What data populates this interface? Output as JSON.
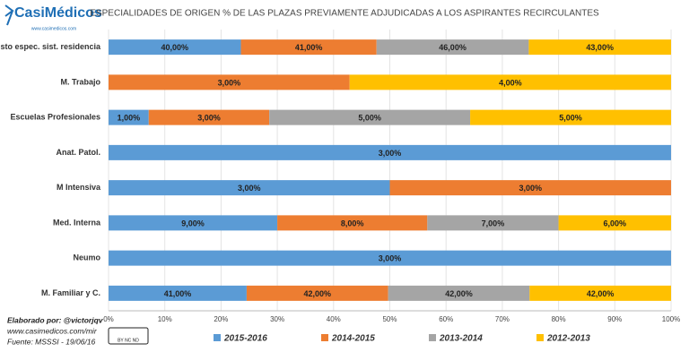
{
  "chart_data": {
    "type": "bar",
    "stacked": "percent",
    "orientation": "horizontal",
    "title": "ESPECIALIDADES DE ORIGEN % DE LAS PLAZAS PREVIAMENTE ADJUDICADAS A LOS ASPIRANTES RECIRCULANTES",
    "categories": [
      "Resto espec. sist. residencia",
      "M. Trabajo",
      "Escuelas Profesionales",
      "Anat. Patol.",
      "M Intensiva",
      "Med. Interna",
      "Neumo",
      "M. Familiar y C."
    ],
    "series": [
      {
        "name": "2015-2016",
        "color": "#5b9bd5",
        "values": [
          40,
          null,
          1,
          3,
          3,
          9,
          3,
          41
        ],
        "value_labels": [
          "40,00%",
          null,
          "1,00%",
          "3,00%",
          "3,00%",
          "9,00%",
          "3,00%",
          "41,00%"
        ]
      },
      {
        "name": "2014-2015",
        "color": "#ed7d31",
        "values": [
          41,
          3,
          3,
          null,
          3,
          8,
          null,
          42
        ],
        "value_labels": [
          "41,00%",
          "3,00%",
          "3,00%",
          null,
          "3,00%",
          "8,00%",
          null,
          "42,00%"
        ]
      },
      {
        "name": "2013-2014",
        "color": "#a5a5a5",
        "values": [
          46,
          null,
          5,
          null,
          null,
          7,
          null,
          42
        ],
        "value_labels": [
          "46,00%",
          null,
          "5,00%",
          null,
          null,
          "7,00%",
          null,
          "42,00%"
        ]
      },
      {
        "name": "2012-2013",
        "color": "#ffc000",
        "values": [
          43,
          4,
          5,
          null,
          null,
          6,
          null,
          42
        ],
        "value_labels": [
          "43,00%",
          "4,00%",
          "5,00%",
          null,
          null,
          "6,00%",
          null,
          "42,00%"
        ]
      }
    ],
    "xlim": [
      0,
      100
    ],
    "xticks": [
      {
        "value": 0,
        "label": "0%"
      },
      {
        "value": 10,
        "label": "10%"
      },
      {
        "value": 20,
        "label": "20%"
      },
      {
        "value": 30,
        "label": "30%"
      },
      {
        "value": 40,
        "label": "40%"
      },
      {
        "value": 50,
        "label": "50%"
      },
      {
        "value": 60,
        "label": "60%"
      },
      {
        "value": 70,
        "label": "70%"
      },
      {
        "value": 80,
        "label": "80%"
      },
      {
        "value": 90,
        "label": "90%"
      },
      {
        "value": 100,
        "label": "100%"
      }
    ],
    "grid": true,
    "legend": "bottom"
  },
  "logo": {
    "name1": "Casi",
    "name2": "Médicos",
    "url": "www.casimedicos.com"
  },
  "footer": {
    "author": "Elaborado por: @victorjqv",
    "site": "www.casimedicos.com/mir",
    "source": "Fuente: MSSSI - 19/06/16",
    "license": "BY NC ND"
  }
}
